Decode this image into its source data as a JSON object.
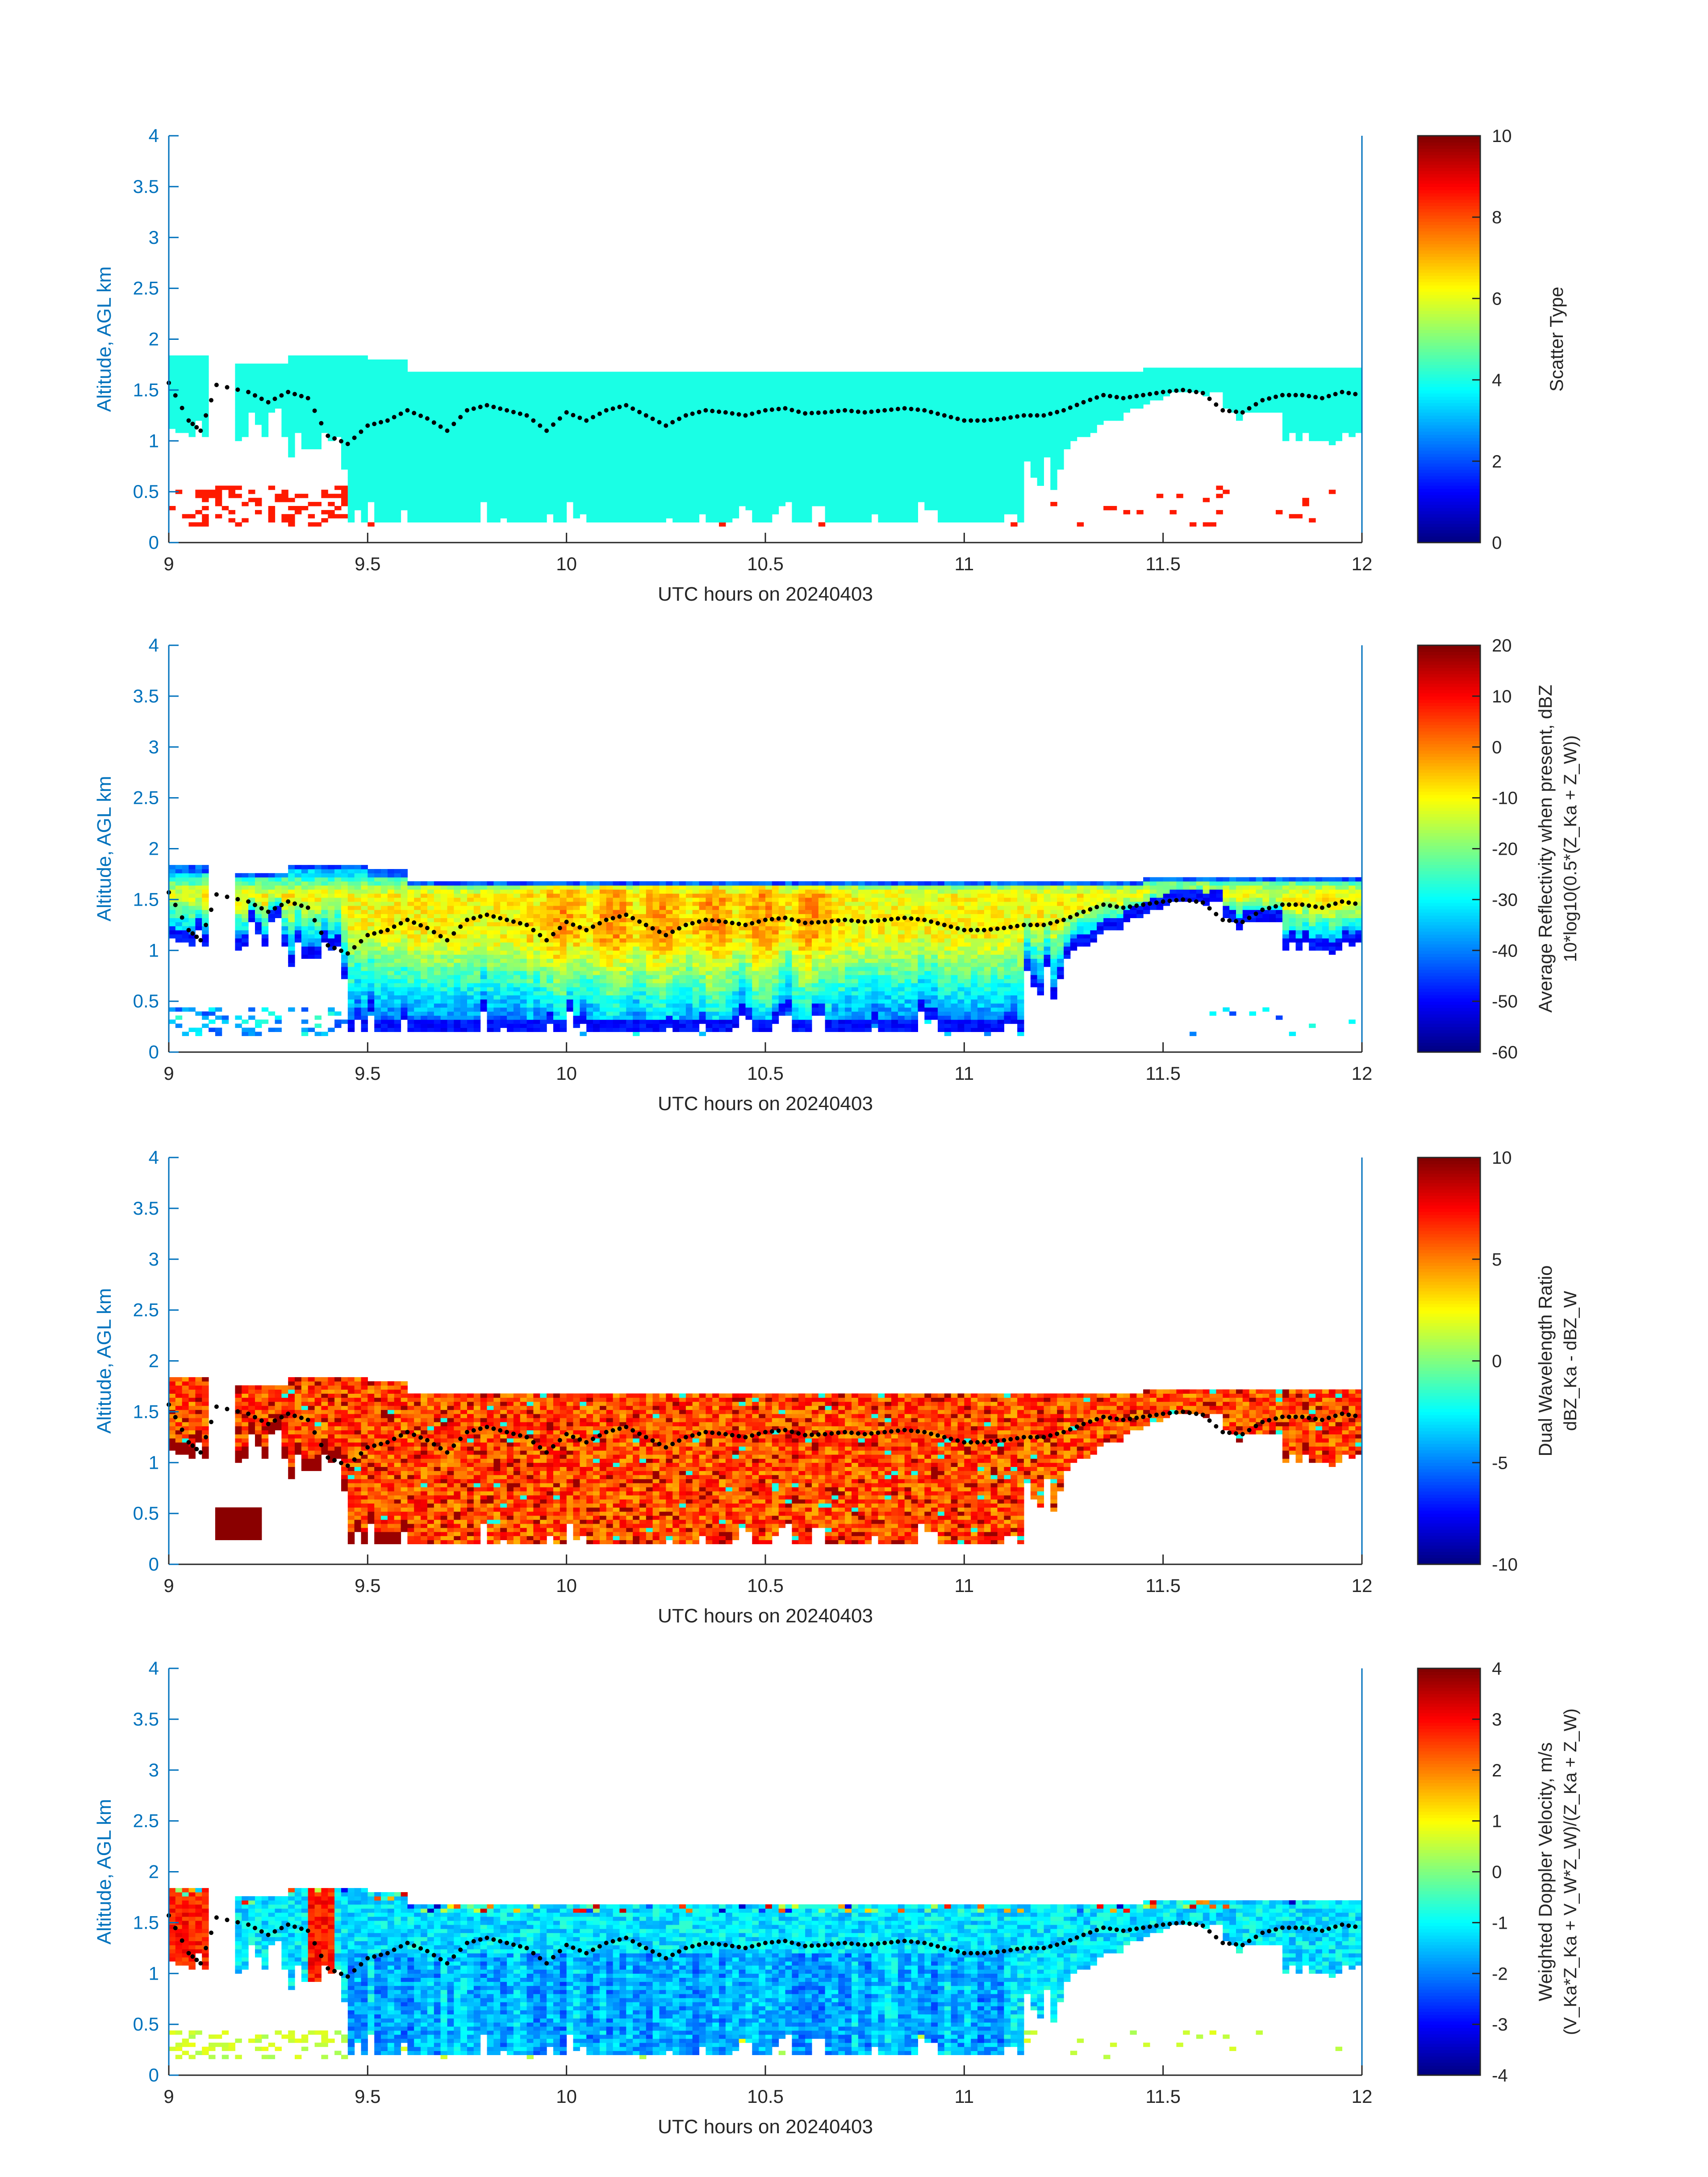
{
  "chart_data": [
    {
      "type": "heatmap",
      "xlabel": "UTC hours on 20240403",
      "ylabel": "Altitude, AGL km",
      "xlim": [
        9,
        12
      ],
      "ylim": [
        0,
        4
      ],
      "xticks": [
        "9",
        "9.5",
        "10",
        "10.5",
        "11",
        "11.5",
        "12"
      ],
      "yticks": [
        "0",
        "0.5",
        "1",
        "1.5",
        "2",
        "2.5",
        "3",
        "3.5",
        "4"
      ],
      "colorbar": {
        "label": "Scatter Type",
        "sublabel": "",
        "ticks": [
          "0",
          "2",
          "4",
          "6",
          "8",
          "10"
        ],
        "range": [
          0,
          10
        ]
      },
      "field": "scatter",
      "cloud_layer": {
        "base_km": 0.2,
        "top_km": 1.65,
        "start_hr": 9.17,
        "end_hr": 12.0,
        "dominant_value": 4
      },
      "early_layer": {
        "start_hr": 9.0,
        "end_hr": 9.1,
        "base_km": 0.95,
        "top_km": 1.8
      },
      "near_surface_value": 8.5
    },
    {
      "type": "heatmap",
      "xlabel": "UTC hours on 20240403",
      "ylabel": "Altitude, AGL km",
      "xlim": [
        9,
        12
      ],
      "ylim": [
        0,
        4
      ],
      "xticks": [
        "9",
        "9.5",
        "10",
        "10.5",
        "11",
        "11.5",
        "12"
      ],
      "yticks": [
        "0",
        "0.5",
        "1",
        "1.5",
        "2",
        "2.5",
        "3",
        "3.5",
        "4"
      ],
      "colorbar": {
        "label": "Average Reflectivity when present, dBZ",
        "sublabel": "10*log10(0.5*(Z_Ka + Z_W))",
        "ticks": [
          "-60",
          "-50",
          "-40",
          "-30",
          "-20",
          "-10",
          "0",
          "10",
          "20"
        ],
        "range": [
          -60,
          20
        ]
      },
      "field": "reflectivity",
      "value_range_dbz": [
        -55,
        5
      ]
    },
    {
      "type": "heatmap",
      "xlabel": "UTC hours on 20240403",
      "ylabel": "Altitude, AGL km",
      "xlim": [
        9,
        12
      ],
      "ylim": [
        0,
        4
      ],
      "xticks": [
        "9",
        "9.5",
        "10",
        "10.5",
        "11",
        "11.5",
        "12"
      ],
      "yticks": [
        "0",
        "0.5",
        "1",
        "1.5",
        "2",
        "2.5",
        "3",
        "3.5",
        "4"
      ],
      "colorbar": {
        "label": "Dual Wavelength Ratio",
        "sublabel": "dBZ_Ka - dBZ_W",
        "ticks": [
          "-10",
          "-5",
          "0",
          "5",
          "10"
        ],
        "range": [
          -10,
          10
        ]
      },
      "field": "dwr",
      "value_range_db": [
        2,
        10
      ]
    },
    {
      "type": "heatmap",
      "xlabel": "UTC hours on 20240403",
      "ylabel": "Altitude, AGL km",
      "xlim": [
        9,
        12
      ],
      "ylim": [
        0,
        4
      ],
      "xticks": [
        "9",
        "9.5",
        "10",
        "10.5",
        "11",
        "11.5",
        "12"
      ],
      "yticks": [
        "0",
        "0.5",
        "1",
        "1.5",
        "2",
        "2.5",
        "3",
        "3.5",
        "4"
      ],
      "colorbar": {
        "label": "Weighted Doppler Velocity, m/s",
        "sublabel": "(V_Ka*Z_Ka + V_W*Z_W)/(Z_Ka + Z_W)",
        "ticks": [
          "-4",
          "-3",
          "-2",
          "-1",
          "0",
          "1",
          "2",
          "3",
          "4"
        ],
        "range": [
          -4,
          4
        ]
      },
      "field": "velocity",
      "value_range_ms": [
        -3.5,
        3.5
      ]
    }
  ],
  "overlay": {
    "marker": "black dots",
    "description_points_hr_km": [
      [
        9.0,
        1.57
      ],
      [
        9.05,
        1.2
      ],
      [
        9.08,
        1.1
      ],
      [
        9.12,
        1.55
      ],
      [
        9.2,
        1.48
      ],
      [
        9.25,
        1.38
      ],
      [
        9.3,
        1.48
      ],
      [
        9.35,
        1.42
      ],
      [
        9.4,
        1.05
      ],
      [
        9.45,
        0.97
      ],
      [
        9.5,
        1.15
      ],
      [
        9.55,
        1.2
      ],
      [
        9.6,
        1.3
      ],
      [
        9.65,
        1.22
      ],
      [
        9.7,
        1.1
      ],
      [
        9.75,
        1.3
      ],
      [
        9.8,
        1.35
      ],
      [
        9.85,
        1.3
      ],
      [
        9.9,
        1.25
      ],
      [
        9.95,
        1.1
      ],
      [
        10.0,
        1.28
      ],
      [
        10.05,
        1.2
      ],
      [
        10.1,
        1.3
      ],
      [
        10.15,
        1.35
      ],
      [
        10.2,
        1.25
      ],
      [
        10.25,
        1.15
      ],
      [
        10.3,
        1.25
      ],
      [
        10.35,
        1.3
      ],
      [
        10.4,
        1.28
      ],
      [
        10.45,
        1.25
      ],
      [
        10.5,
        1.3
      ],
      [
        10.55,
        1.32
      ],
      [
        10.6,
        1.27
      ],
      [
        10.65,
        1.28
      ],
      [
        10.7,
        1.3
      ],
      [
        10.75,
        1.28
      ],
      [
        10.8,
        1.3
      ],
      [
        10.85,
        1.32
      ],
      [
        10.9,
        1.3
      ],
      [
        10.95,
        1.25
      ],
      [
        11.0,
        1.2
      ],
      [
        11.05,
        1.2
      ],
      [
        11.1,
        1.22
      ],
      [
        11.15,
        1.25
      ],
      [
        11.2,
        1.25
      ],
      [
        11.25,
        1.3
      ],
      [
        11.3,
        1.38
      ],
      [
        11.35,
        1.45
      ],
      [
        11.4,
        1.42
      ],
      [
        11.45,
        1.45
      ],
      [
        11.5,
        1.48
      ],
      [
        11.55,
        1.5
      ],
      [
        11.6,
        1.47
      ],
      [
        11.65,
        1.3
      ],
      [
        11.7,
        1.28
      ],
      [
        11.75,
        1.4
      ],
      [
        11.8,
        1.45
      ],
      [
        11.85,
        1.45
      ],
      [
        11.9,
        1.42
      ],
      [
        11.95,
        1.48
      ],
      [
        12.0,
        1.45
      ]
    ]
  }
}
